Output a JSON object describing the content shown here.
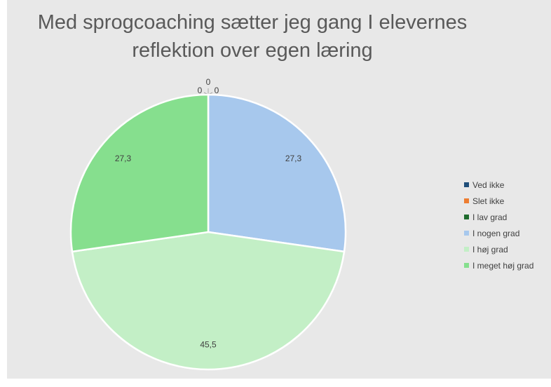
{
  "chart_data": {
    "type": "pie",
    "title_line1": "Med sprogcoaching sætter jeg gang I elevernes",
    "title_line2": "reflektion over egen læring",
    "categories": [
      "Ved ikke",
      "Slet ikke",
      "I lav grad",
      "I nogen grad",
      "I høj grad",
      "I meget høj grad"
    ],
    "values": [
      0,
      0,
      0,
      27.3,
      45.5,
      27.3
    ],
    "labels": [
      "0",
      "0",
      "0",
      "27,3",
      "45,5",
      "27,3"
    ],
    "colors": [
      "#1f4e79",
      "#ed7d31",
      "#1e6b2e",
      "#a7c8ed",
      "#c3efc6",
      "#86df8e"
    ],
    "legend_position": "right"
  }
}
